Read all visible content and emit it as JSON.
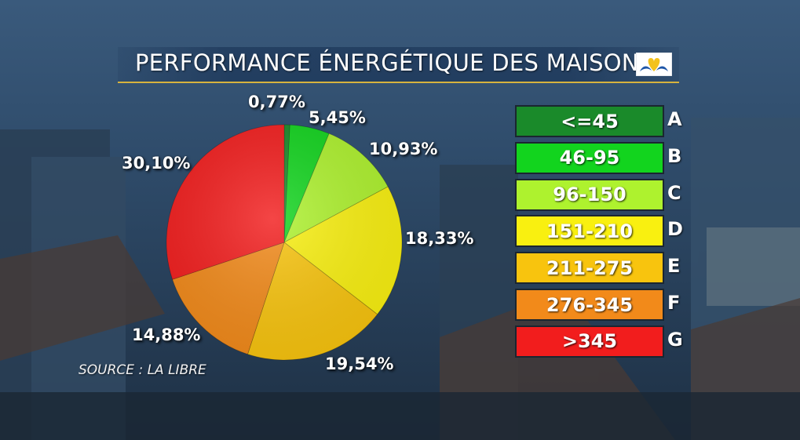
{
  "header": {
    "title": "PERFORMANCE ÉNERGÉTIQUE DES MAISONS"
  },
  "source": "SOURCE : LA LIBRE",
  "chart_data": {
    "type": "pie",
    "title": "PERFORMANCE ÉNERGÉTIQUE DES MAISONS",
    "slices": [
      {
        "class": "A",
        "label": "0,77%",
        "value": 0.77,
        "color": "#1a8a2a"
      },
      {
        "class": "B",
        "label": "5,45%",
        "value": 5.45,
        "color": "#12d41e"
      },
      {
        "class": "C",
        "label": "10,93%",
        "value": 10.93,
        "color": "#aef22e"
      },
      {
        "class": "D",
        "label": "18,33%",
        "value": 18.33,
        "color": "#f9f010"
      },
      {
        "class": "E",
        "label": "19,54%",
        "value": 19.54,
        "color": "#f8c40e"
      },
      {
        "class": "F",
        "label": "14,88%",
        "value": 14.88,
        "color": "#f28a1a"
      },
      {
        "class": "G",
        "label": "30,10%",
        "value": 30.1,
        "color": "#f21d1d"
      }
    ],
    "legend": [
      {
        "range": "<=45",
        "class": "A",
        "color": "#1a8a2a"
      },
      {
        "range": "46-95",
        "class": "B",
        "color": "#12d41e"
      },
      {
        "range": "96-150",
        "class": "C",
        "color": "#aef22e"
      },
      {
        "range": "151-210",
        "class": "D",
        "color": "#f9f010"
      },
      {
        "range": "211-275",
        "class": "E",
        "color": "#f8c40e"
      },
      {
        "range": "276-345",
        "class": "F",
        "color": "#f28a1a"
      },
      {
        "range": ">345",
        "class": "G",
        "color": "#f21d1d"
      }
    ]
  }
}
